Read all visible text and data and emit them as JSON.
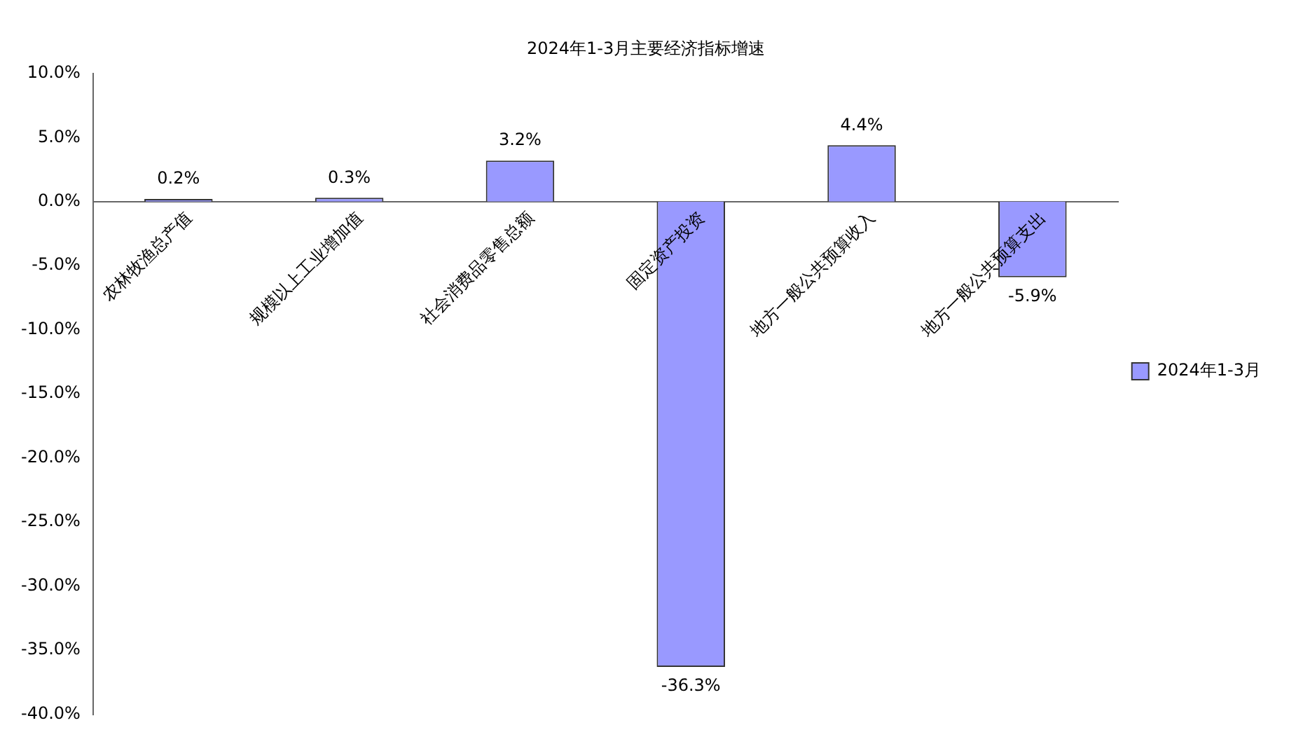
{
  "chart_data": {
    "type": "bar",
    "title": "2024年1-3月主要经济指标增速",
    "categories": [
      "农林牧渔总产值",
      "规模以上工业增加值",
      "社会消费品零售总额",
      "固定资产投资",
      "地方一般公共预算收入",
      "地方一般公共预算支出"
    ],
    "series": [
      {
        "name": "2024年1-3月",
        "color": "#9999ff",
        "values": [
          0.2,
          0.3,
          3.2,
          -36.3,
          4.4,
          -5.9
        ],
        "value_labels": [
          "0.2%",
          "0.3%",
          "3.2%",
          "-36.3%",
          "4.4%",
          "-5.9%"
        ]
      }
    ],
    "ylim": [
      -40,
      10
    ],
    "yticks": [
      {
        "value": -40,
        "label": "-40.0%"
      },
      {
        "value": -35,
        "label": "-35.0%"
      },
      {
        "value": -30,
        "label": "-30.0%"
      },
      {
        "value": -25,
        "label": "-25.0%"
      },
      {
        "value": -20,
        "label": "-20.0%"
      },
      {
        "value": -15,
        "label": "-15.0%"
      },
      {
        "value": -10,
        "label": "-10.0%"
      },
      {
        "value": -5,
        "label": "-5.0%"
      },
      {
        "value": 0,
        "label": "0.0%"
      },
      {
        "value": 5,
        "label": "5.0%"
      },
      {
        "value": 10,
        "label": "10.0%"
      }
    ],
    "grid": false,
    "legend": "right"
  }
}
